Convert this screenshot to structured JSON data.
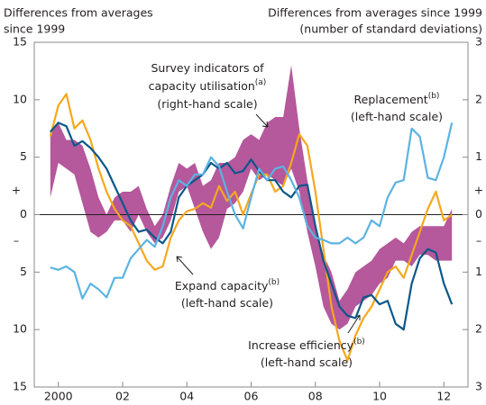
{
  "chart_data": {
    "type": "line",
    "y_title": [
      "Differences from averages",
      "since 1999"
    ],
    "y2_title": [
      "Differences from averages since 1999",
      "(number of standard deviations)"
    ],
    "signs": [
      "+",
      "–"
    ],
    "xlim": [
      1999.25,
      2012.75
    ],
    "xticks": [
      {
        "value": 2000,
        "label": "2000"
      },
      {
        "value": 2002,
        "label": "02"
      },
      {
        "value": 2004,
        "label": "04"
      },
      {
        "value": 2006,
        "label": "06"
      },
      {
        "value": 2008,
        "label": "08"
      },
      {
        "value": 2010,
        "label": "10"
      },
      {
        "value": 2012,
        "label": "12"
      }
    ],
    "ylim": [
      -15,
      15
    ],
    "yticks": [
      {
        "value": -15,
        "label": "15"
      },
      {
        "value": -10,
        "label": "10"
      },
      {
        "value": -5,
        "label": "5"
      },
      0,
      5,
      10,
      15
    ],
    "y2lim": [
      -3,
      3
    ],
    "y2ticks": [
      {
        "value": -3,
        "label": "3"
      },
      {
        "value": -2,
        "label": "2"
      },
      {
        "value": -1,
        "label": "1"
      },
      0,
      1,
      2,
      3
    ],
    "x": [
      1999.75,
      2000,
      2000.25,
      2000.5,
      2000.75,
      2001,
      2001.25,
      2001.5,
      2001.75,
      2002,
      2002.25,
      2002.5,
      2002.75,
      2003,
      2003.25,
      2003.5,
      2003.75,
      2004,
      2004.25,
      2004.5,
      2004.75,
      2005,
      2005.25,
      2005.5,
      2005.75,
      2006,
      2006.25,
      2006.5,
      2006.75,
      2007,
      2007.25,
      2007.5,
      2007.75,
      2008,
      2008.25,
      2008.5,
      2008.75,
      2009,
      2009.25,
      2009.5,
      2009.75,
      2010,
      2010.25,
      2010.5,
      2010.75,
      2011,
      2011.25,
      2011.5,
      2011.75,
      2012,
      2012.25
    ],
    "band": {
      "axis": "y2",
      "color": "#b5589c",
      "annotation": [
        {
          "text": "Survey indicators of"
        },
        {
          "text": "capacity utilisation",
          "sup": "(a)"
        },
        {
          "text": "(right-hand scale)"
        }
      ],
      "low": [
        0.3,
        0.9,
        0.8,
        0.7,
        0.2,
        -0.3,
        -0.4,
        -0.3,
        -0.1,
        -0.1,
        -0.3,
        0,
        -0.3,
        -0.5,
        -0.4,
        -0.1,
        0.4,
        0.5,
        0.1,
        -0.3,
        -0.6,
        -0.4,
        0.1,
        0.2,
        0.4,
        0.8,
        0.6,
        0.7,
        0.6,
        0.5,
        0.8,
        0.4,
        -0.3,
        -0.9,
        -1.6,
        -1.9,
        -2.0,
        -1.9,
        -1.6,
        -1.5,
        -1.4,
        -1.2,
        -1.1,
        -0.8,
        -0.8,
        -0.9,
        -0.7,
        -0.7,
        -0.8,
        -0.8,
        -0.8
      ],
      "high": [
        1.4,
        1.6,
        1.3,
        1.3,
        1.2,
        0.8,
        0.3,
        0.0,
        0.3,
        0.4,
        0.4,
        0.5,
        0.1,
        -0.2,
        0,
        0.5,
        0.9,
        0.8,
        0.9,
        0.5,
        0.6,
        0.9,
        0.9,
        1.0,
        1.3,
        1.4,
        1.3,
        1.6,
        1.7,
        1.7,
        2.6,
        1.5,
        0.6,
        -0.2,
        -0.7,
        -1.0,
        -1.5,
        -1.3,
        -1.0,
        -0.9,
        -0.8,
        -0.6,
        -0.5,
        -0.4,
        -0.5,
        -0.3,
        -0.2,
        -0.2,
        -0.2,
        -0.2,
        0.1
      ]
    },
    "series": [
      {
        "color": "#f5a81c",
        "annotation": [
          {
            "text": "Expand capacity",
            "sup": "(b)"
          },
          {
            "text": "(left-hand scale)"
          }
        ],
        "values": [
          6.8,
          9.5,
          10.5,
          7.5,
          8.2,
          6.5,
          4,
          2,
          0.5,
          -0.5,
          -1,
          -2.5,
          -4,
          -4.8,
          -4.5,
          -2,
          -0.5,
          0.3,
          0.5,
          1,
          0.6,
          2.5,
          1.2,
          2,
          0,
          1.8,
          3.5,
          3.5,
          2,
          2.5,
          4.5,
          7,
          6,
          2,
          -3,
          -8,
          -11,
          -12.7,
          -10.5,
          -9,
          -8,
          -6.5,
          -5,
          -4.5,
          -5.5,
          -3.5,
          -1.5,
          0.5,
          2,
          -0.5,
          0
        ]
      },
      {
        "color": "#0b5789",
        "annotation": [
          {
            "text": "Increase efficiency",
            "sup": "(b)"
          },
          {
            "text": "(left-hand scale)"
          }
        ],
        "values": [
          7.2,
          8,
          7.7,
          6,
          6.4,
          5.8,
          5,
          4,
          2.5,
          1,
          -0.5,
          -1.5,
          -1.3,
          -2,
          -2.5,
          -1.5,
          1.5,
          2.5,
          3,
          3.5,
          4.5,
          4,
          4.5,
          3.6,
          3.8,
          4.8,
          3.8,
          3,
          3,
          2,
          1.5,
          2.5,
          2.6,
          -1,
          -4,
          -6,
          -8,
          -8.8,
          -9,
          -7.2,
          -7,
          -7.8,
          -7.5,
          -9.5,
          -10,
          -6,
          -3.8,
          -3,
          -3.3,
          -6,
          -7.8
        ]
      },
      {
        "color": "#5cb3e2",
        "annotation": [
          {
            "text": "Replacement",
            "sup": "(b)"
          },
          {
            "text": "(left-hand scale)"
          }
        ],
        "values": [
          -4.6,
          -4.8,
          -4.5,
          -5,
          -7.3,
          -6,
          -6.5,
          -7.2,
          -5.5,
          -5.5,
          -3.8,
          -3,
          -2.2,
          -2.8,
          -1,
          1.5,
          3,
          2.5,
          3.5,
          3.5,
          5,
          4.2,
          2,
          0,
          -1.2,
          1.5,
          4,
          3,
          4,
          4.2,
          3,
          1.5,
          -1,
          -2,
          -2.2,
          -2.5,
          -2.5,
          -2,
          -2.5,
          -2,
          -0.5,
          -1,
          1.5,
          2.8,
          3,
          7.5,
          6.8,
          3.2,
          3,
          5,
          8
        ]
      }
    ]
  }
}
